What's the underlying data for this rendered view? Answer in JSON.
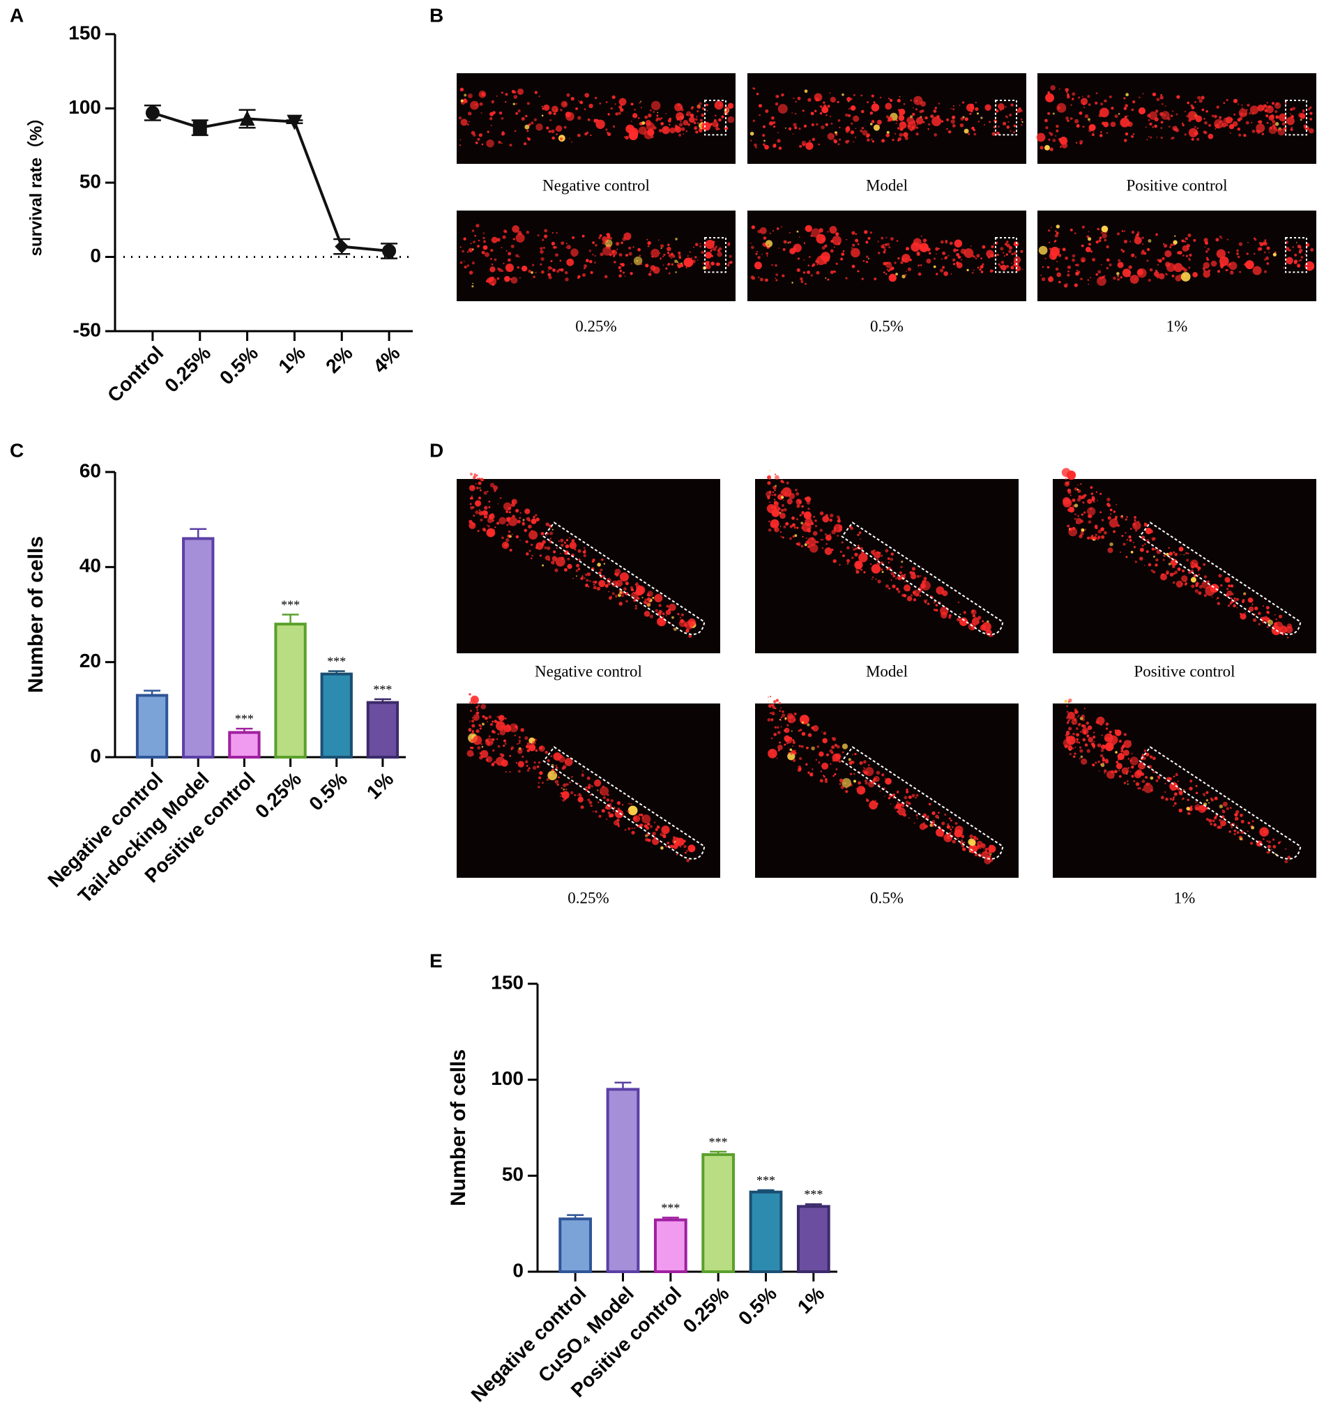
{
  "panels": [
    "A",
    "B",
    "C",
    "D",
    "E"
  ],
  "images_b": [
    "Negative control",
    "Model",
    "Positive control",
    "0.25%",
    "0.5%",
    "1%"
  ],
  "images_d": [
    "Negative control",
    "Model",
    "Positive control",
    "0.25%",
    "0.5%",
    "1%"
  ],
  "chart_data": [
    {
      "type": "line",
      "y_label": "survival rate（%）",
      "categories": [
        "Control",
        "0.25%",
        "0.5%",
        "1%",
        "2%",
        "4%"
      ],
      "values": [
        97,
        87,
        93,
        91,
        7,
        4
      ],
      "errors": [
        5,
        5,
        6,
        1,
        5,
        5
      ],
      "markers": [
        "circle",
        "square",
        "triangle",
        "triangle-down",
        "diamond",
        "circle"
      ],
      "color": "#111111",
      "hline": 0,
      "ylim": [
        -50,
        150
      ],
      "yticks": [
        -50,
        0,
        50,
        100,
        150
      ]
    },
    {
      "type": "bar",
      "y_label": "Number of cells",
      "categories": [
        "Negative control",
        "Tail-docking Model",
        "Positive control",
        "0.25%",
        "0.5%",
        "1%"
      ],
      "values": [
        13,
        46,
        5.2,
        28,
        17.5,
        11.5
      ],
      "errors": [
        1,
        2,
        0.8,
        2,
        0.6,
        0.7
      ],
      "annotations": [
        null,
        null,
        "***",
        "***",
        "***",
        "***"
      ],
      "fills": [
        "#7ba3d8",
        "#a58fd8",
        "#f19bf0",
        "#b8dd82",
        "#2d8bb0",
        "#6b4ea0"
      ],
      "strokes": [
        "#2f5597",
        "#5b3fa6",
        "#a020a0",
        "#5aa02c",
        "#1b4f72",
        "#3c2a6b"
      ],
      "ylim": [
        0,
        60
      ],
      "yticks": [
        0,
        20,
        40,
        60
      ]
    },
    {
      "type": "bar",
      "y_label": "Number of cells",
      "categories": [
        "Negative control",
        "CuSO₄ Model",
        "Positive control",
        "0.25%",
        "0.5%",
        "1%"
      ],
      "values": [
        27.5,
        95,
        27,
        61,
        41.5,
        34
      ],
      "errors": [
        2,
        3.5,
        1.2,
        1.5,
        1,
        1.2
      ],
      "annotations": [
        null,
        null,
        "***",
        "***",
        "***",
        "***"
      ],
      "fills": [
        "#7ba3d8",
        "#a58fd8",
        "#f19bf0",
        "#b8dd82",
        "#2d8bb0",
        "#6b4ea0"
      ],
      "strokes": [
        "#2f5597",
        "#5b3fa6",
        "#a020a0",
        "#5aa02c",
        "#1b4f72",
        "#3c2a6b"
      ],
      "ylim": [
        0,
        150
      ],
      "yticks": [
        0,
        50,
        100,
        150
      ]
    }
  ]
}
